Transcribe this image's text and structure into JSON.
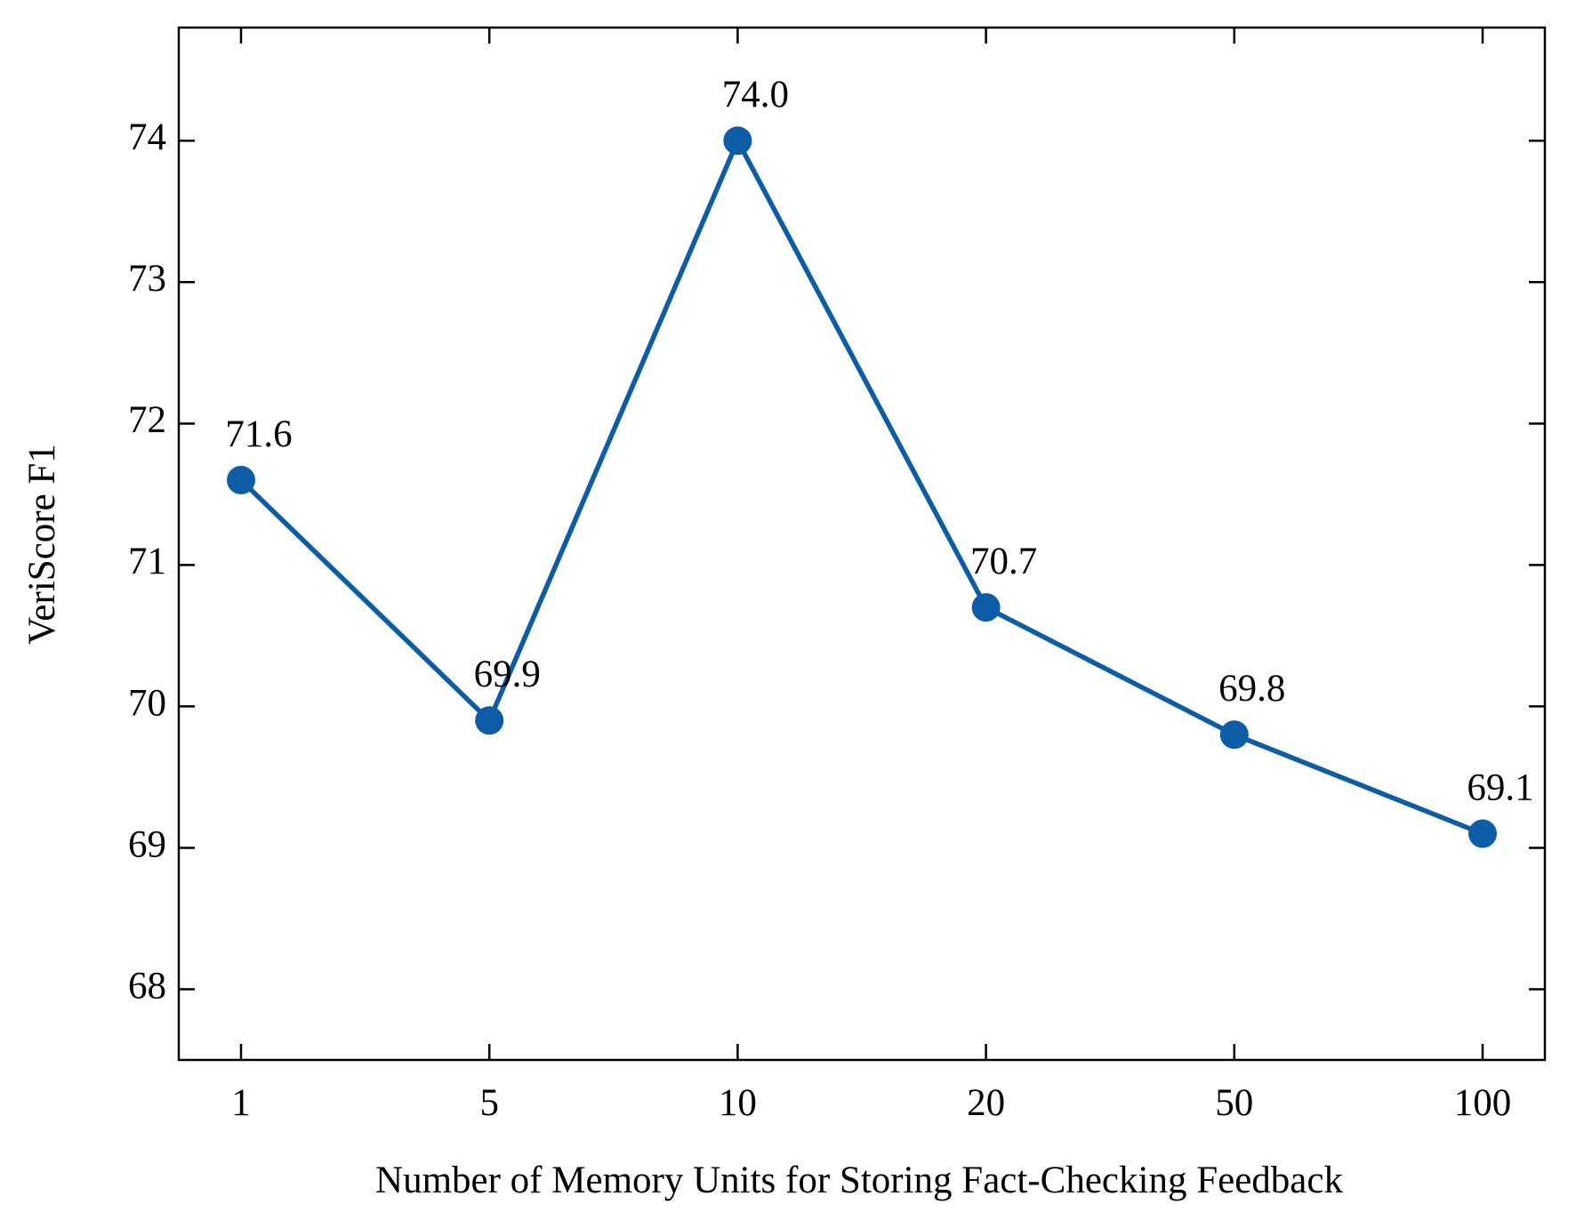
{
  "chart_data": {
    "type": "line",
    "x_label": "Number of Memory Units for Storing Fact-Checking Feedback",
    "y_label": "VeriScore F1",
    "categories": [
      "1",
      "5",
      "10",
      "20",
      "50",
      "100"
    ],
    "series": [
      {
        "name": "VeriScore F1",
        "color": "#0c5da5",
        "values": [
          71.6,
          69.9,
          74,
          70.7,
          69.8,
          69.1
        ],
        "value_labels": [
          "71.6",
          "69.9",
          "74.0",
          "70.7",
          "69.8",
          "69.1"
        ]
      }
    ],
    "ylim": [
      67.5,
      74.8
    ],
    "yticks": [
      68,
      69,
      70,
      71,
      72,
      73,
      74
    ],
    "grid": false
  }
}
